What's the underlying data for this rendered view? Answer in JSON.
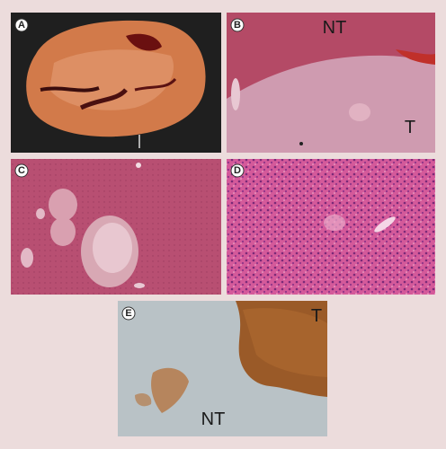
{
  "panels": [
    {
      "label": "A"
    },
    {
      "label": "B",
      "annotations": [
        "NT",
        "T"
      ]
    },
    {
      "label": "C"
    },
    {
      "label": "D"
    },
    {
      "label": "E",
      "annotations": [
        "T",
        "NT"
      ]
    }
  ]
}
